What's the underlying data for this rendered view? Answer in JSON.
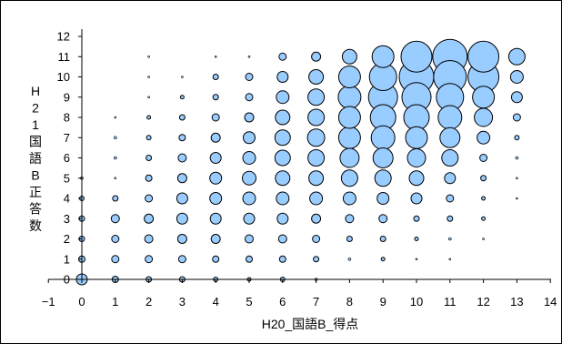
{
  "chart_data": {
    "type": "scatter",
    "subtype": "bubble",
    "title": "",
    "xlabel": "H20_国語B_得点",
    "ylabel": "H21国語B正答数",
    "xlim": [
      -1,
      14
    ],
    "ylim": [
      0,
      12
    ],
    "x_ticks": [
      "−1",
      "0",
      "1",
      "2",
      "3",
      "4",
      "5",
      "6",
      "7",
      "8",
      "9",
      "10",
      "11",
      "12",
      "13",
      "14"
    ],
    "y_ticks": [
      "0",
      "1",
      "2",
      "3",
      "4",
      "5",
      "6",
      "7",
      "8",
      "9",
      "10",
      "11",
      "12"
    ],
    "grid": false,
    "legend": "none",
    "colors": {
      "bubble_fill": "#99ccff",
      "bubble_stroke": "#000000"
    },
    "points": [
      {
        "x": 0,
        "y": 0,
        "s": 6
      },
      {
        "x": 0,
        "y": 1,
        "s": 3.5
      },
      {
        "x": 0,
        "y": 2,
        "s": 3
      },
      {
        "x": 0,
        "y": 3,
        "s": 3
      },
      {
        "x": 0,
        "y": 4,
        "s": 2.5
      },
      {
        "x": 0,
        "y": 5,
        "s": 1.5
      },
      {
        "x": 1,
        "y": 0,
        "s": 3.5
      },
      {
        "x": 1,
        "y": 1,
        "s": 4
      },
      {
        "x": 1,
        "y": 2,
        "s": 4
      },
      {
        "x": 1,
        "y": 3,
        "s": 4.5
      },
      {
        "x": 1,
        "y": 4,
        "s": 3
      },
      {
        "x": 1,
        "y": 5,
        "s": 1
      },
      {
        "x": 1,
        "y": 6,
        "s": 1.5
      },
      {
        "x": 1,
        "y": 7,
        "s": 1.5
      },
      {
        "x": 1,
        "y": 8,
        "s": 1
      },
      {
        "x": 2,
        "y": 0,
        "s": 3
      },
      {
        "x": 2,
        "y": 1,
        "s": 4
      },
      {
        "x": 2,
        "y": 2,
        "s": 4.5
      },
      {
        "x": 2,
        "y": 3,
        "s": 5
      },
      {
        "x": 2,
        "y": 4,
        "s": 4
      },
      {
        "x": 2,
        "y": 5,
        "s": 3.5
      },
      {
        "x": 2,
        "y": 6,
        "s": 3
      },
      {
        "x": 2,
        "y": 7,
        "s": 2.5
      },
      {
        "x": 2,
        "y": 8,
        "s": 2
      },
      {
        "x": 2,
        "y": 9,
        "s": 1
      },
      {
        "x": 2,
        "y": 10,
        "s": 1
      },
      {
        "x": 2,
        "y": 11,
        "s": 1
      },
      {
        "x": 3,
        "y": 0,
        "s": 3
      },
      {
        "x": 3,
        "y": 1,
        "s": 4
      },
      {
        "x": 3,
        "y": 2,
        "s": 5
      },
      {
        "x": 3,
        "y": 3,
        "s": 6
      },
      {
        "x": 3,
        "y": 4,
        "s": 6
      },
      {
        "x": 3,
        "y": 5,
        "s": 5
      },
      {
        "x": 3,
        "y": 6,
        "s": 4.5
      },
      {
        "x": 3,
        "y": 7,
        "s": 3.5
      },
      {
        "x": 3,
        "y": 8,
        "s": 3
      },
      {
        "x": 3,
        "y": 9,
        "s": 2
      },
      {
        "x": 3,
        "y": 10,
        "s": 1
      },
      {
        "x": 4,
        "y": 0,
        "s": 2.5
      },
      {
        "x": 4,
        "y": 1,
        "s": 3.5
      },
      {
        "x": 4,
        "y": 2,
        "s": 5
      },
      {
        "x": 4,
        "y": 3,
        "s": 6
      },
      {
        "x": 4,
        "y": 4,
        "s": 6.5
      },
      {
        "x": 4,
        "y": 5,
        "s": 6.5
      },
      {
        "x": 4,
        "y": 6,
        "s": 6
      },
      {
        "x": 4,
        "y": 7,
        "s": 5
      },
      {
        "x": 4,
        "y": 8,
        "s": 4
      },
      {
        "x": 4,
        "y": 9,
        "s": 3
      },
      {
        "x": 4,
        "y": 10,
        "s": 3
      },
      {
        "x": 4,
        "y": 11,
        "s": 1
      },
      {
        "x": 5,
        "y": 0,
        "s": 2
      },
      {
        "x": 5,
        "y": 1,
        "s": 3.5
      },
      {
        "x": 5,
        "y": 2,
        "s": 4.5
      },
      {
        "x": 5,
        "y": 3,
        "s": 6
      },
      {
        "x": 5,
        "y": 4,
        "s": 7
      },
      {
        "x": 5,
        "y": 5,
        "s": 7.5
      },
      {
        "x": 5,
        "y": 6,
        "s": 7
      },
      {
        "x": 5,
        "y": 7,
        "s": 6.5
      },
      {
        "x": 5,
        "y": 8,
        "s": 5
      },
      {
        "x": 5,
        "y": 9,
        "s": 4
      },
      {
        "x": 5,
        "y": 10,
        "s": 4
      },
      {
        "x": 5,
        "y": 11,
        "s": 1
      },
      {
        "x": 6,
        "y": 0,
        "s": 2.5
      },
      {
        "x": 6,
        "y": 1,
        "s": 3.5
      },
      {
        "x": 6,
        "y": 2,
        "s": 4.5
      },
      {
        "x": 6,
        "y": 3,
        "s": 6
      },
      {
        "x": 6,
        "y": 4,
        "s": 7
      },
      {
        "x": 6,
        "y": 5,
        "s": 8
      },
      {
        "x": 6,
        "y": 6,
        "s": 8.5
      },
      {
        "x": 6,
        "y": 7,
        "s": 8.5
      },
      {
        "x": 6,
        "y": 8,
        "s": 8
      },
      {
        "x": 6,
        "y": 9,
        "s": 7
      },
      {
        "x": 6,
        "y": 10,
        "s": 6
      },
      {
        "x": 6,
        "y": 11,
        "s": 4
      },
      {
        "x": 7,
        "y": 0,
        "s": 1.5
      },
      {
        "x": 7,
        "y": 1,
        "s": 3
      },
      {
        "x": 7,
        "y": 2,
        "s": 4
      },
      {
        "x": 7,
        "y": 3,
        "s": 5
      },
      {
        "x": 7,
        "y": 4,
        "s": 7
      },
      {
        "x": 7,
        "y": 5,
        "s": 8
      },
      {
        "x": 7,
        "y": 6,
        "s": 9
      },
      {
        "x": 7,
        "y": 7,
        "s": 9.5
      },
      {
        "x": 7,
        "y": 8,
        "s": 9
      },
      {
        "x": 7,
        "y": 9,
        "s": 9
      },
      {
        "x": 7,
        "y": 10,
        "s": 8
      },
      {
        "x": 7,
        "y": 11,
        "s": 5
      },
      {
        "x": 8,
        "y": 1,
        "s": 1.5
      },
      {
        "x": 8,
        "y": 2,
        "s": 3
      },
      {
        "x": 8,
        "y": 3,
        "s": 4.5
      },
      {
        "x": 8,
        "y": 4,
        "s": 7
      },
      {
        "x": 8,
        "y": 5,
        "s": 9
      },
      {
        "x": 8,
        "y": 6,
        "s": 10.5
      },
      {
        "x": 8,
        "y": 7,
        "s": 12
      },
      {
        "x": 8,
        "y": 8,
        "s": 12
      },
      {
        "x": 8,
        "y": 9,
        "s": 12.5
      },
      {
        "x": 8,
        "y": 10,
        "s": 12
      },
      {
        "x": 8,
        "y": 11,
        "s": 8
      },
      {
        "x": 9,
        "y": 1,
        "s": 2
      },
      {
        "x": 9,
        "y": 2,
        "s": 3
      },
      {
        "x": 9,
        "y": 3,
        "s": 4.5
      },
      {
        "x": 9,
        "y": 4,
        "s": 6.5
      },
      {
        "x": 9,
        "y": 5,
        "s": 9
      },
      {
        "x": 9,
        "y": 6,
        "s": 11
      },
      {
        "x": 9,
        "y": 7,
        "s": 13
      },
      {
        "x": 9,
        "y": 8,
        "s": 14
      },
      {
        "x": 9,
        "y": 9,
        "s": 16
      },
      {
        "x": 9,
        "y": 10,
        "s": 15
      },
      {
        "x": 9,
        "y": 11,
        "s": 12
      },
      {
        "x": 10,
        "y": 1,
        "s": 1
      },
      {
        "x": 10,
        "y": 2,
        "s": 2
      },
      {
        "x": 10,
        "y": 3,
        "s": 3
      },
      {
        "x": 10,
        "y": 4,
        "s": 6
      },
      {
        "x": 10,
        "y": 5,
        "s": 8
      },
      {
        "x": 10,
        "y": 6,
        "s": 10
      },
      {
        "x": 10,
        "y": 7,
        "s": 12
      },
      {
        "x": 10,
        "y": 8,
        "s": 14
      },
      {
        "x": 10,
        "y": 9,
        "s": 16
      },
      {
        "x": 10,
        "y": 10,
        "s": 19
      },
      {
        "x": 10,
        "y": 11,
        "s": 17
      },
      {
        "x": 11,
        "y": 1,
        "s": 1
      },
      {
        "x": 11,
        "y": 2,
        "s": 1.5
      },
      {
        "x": 11,
        "y": 3,
        "s": 3
      },
      {
        "x": 11,
        "y": 4,
        "s": 4
      },
      {
        "x": 11,
        "y": 5,
        "s": 6
      },
      {
        "x": 11,
        "y": 6,
        "s": 9
      },
      {
        "x": 11,
        "y": 7,
        "s": 11
      },
      {
        "x": 11,
        "y": 8,
        "s": 13
      },
      {
        "x": 11,
        "y": 9,
        "s": 15
      },
      {
        "x": 11,
        "y": 10,
        "s": 18
      },
      {
        "x": 11,
        "y": 11,
        "s": 19
      },
      {
        "x": 12,
        "y": 2,
        "s": 1
      },
      {
        "x": 12,
        "y": 3,
        "s": 2
      },
      {
        "x": 12,
        "y": 4,
        "s": 2
      },
      {
        "x": 12,
        "y": 5,
        "s": 3
      },
      {
        "x": 12,
        "y": 6,
        "s": 4
      },
      {
        "x": 12,
        "y": 7,
        "s": 7
      },
      {
        "x": 12,
        "y": 8,
        "s": 10
      },
      {
        "x": 12,
        "y": 9,
        "s": 12
      },
      {
        "x": 12,
        "y": 10,
        "s": 17
      },
      {
        "x": 12,
        "y": 11,
        "s": 17
      },
      {
        "x": 13,
        "y": 4,
        "s": 1
      },
      {
        "x": 13,
        "y": 5,
        "s": 1
      },
      {
        "x": 13,
        "y": 6,
        "s": 1.5
      },
      {
        "x": 13,
        "y": 7,
        "s": 2.5
      },
      {
        "x": 13,
        "y": 8,
        "s": 4
      },
      {
        "x": 13,
        "y": 9,
        "s": 6
      },
      {
        "x": 13,
        "y": 10,
        "s": 7
      },
      {
        "x": 13,
        "y": 11,
        "s": 9
      }
    ]
  }
}
